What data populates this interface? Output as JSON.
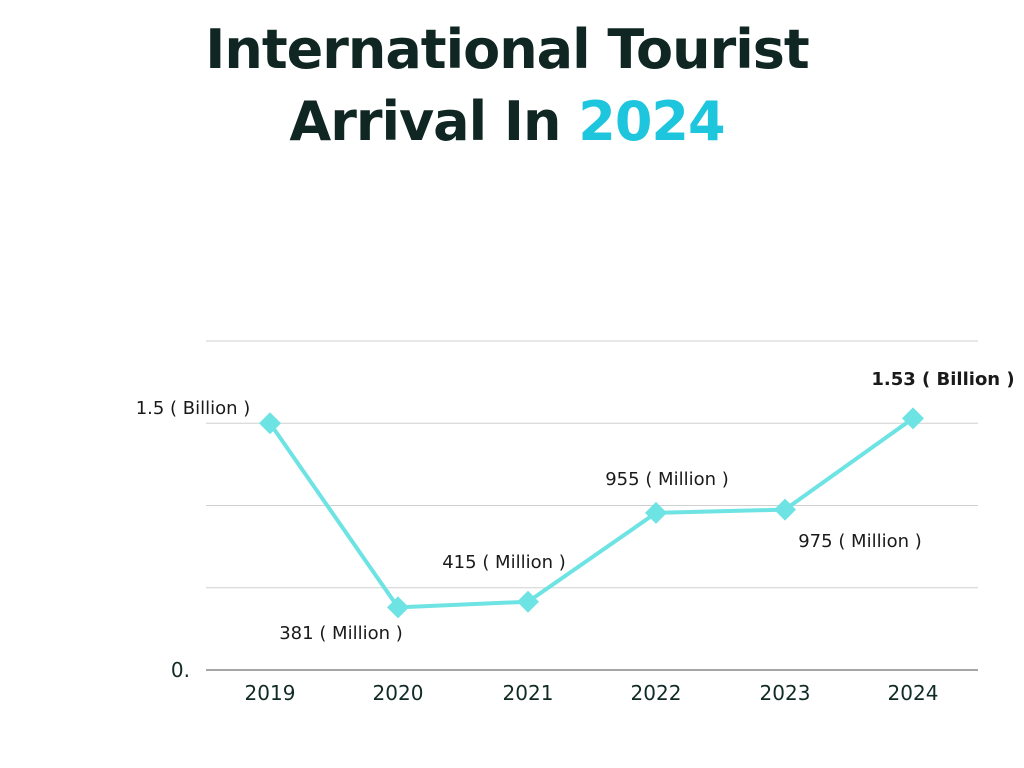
{
  "title": {
    "line1": "International Tourist",
    "line2_prefix": "Arrival In ",
    "line2_highlight": "2024"
  },
  "colors": {
    "title": "#0f2622",
    "highlight": "#1ec6dd",
    "line": "#6ee3e3",
    "grid": "#d0d0d0",
    "axis": "#888888"
  },
  "chart_data": {
    "type": "line",
    "title": "International Tourist Arrival In 2024",
    "categories": [
      "2019",
      "2020",
      "2021",
      "2022",
      "2023",
      "2024"
    ],
    "series": [
      {
        "values": [
          1.5,
          0.381,
          0.415,
          0.955,
          0.975,
          1.53
        ]
      }
    ],
    "data_labels": [
      "1.5 ( Billion )",
      "381 ( Million )",
      "415 ( Million )",
      "955 ( Million )",
      "975 ( Million )",
      "1.53 ( Billion )"
    ],
    "y_tick_labels": [
      {
        "value": 0,
        "label": "0."
      }
    ],
    "ylim": [
      0,
      2.0
    ],
    "gridlines_at": [
      0.5,
      1.0,
      1.5,
      2.0
    ],
    "grid": true,
    "marker": "diamond",
    "xlabel": "",
    "ylabel": ""
  }
}
